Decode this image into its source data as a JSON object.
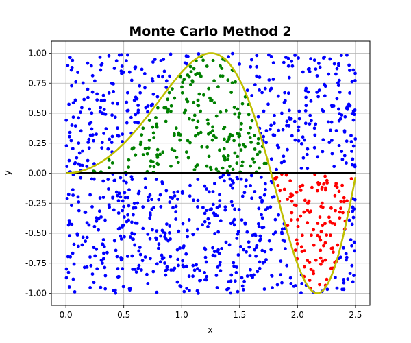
{
  "chart_data": {
    "type": "scatter",
    "title": "Monte Carlo Method 2",
    "xlabel": "x",
    "ylabel": "y",
    "xlim": [
      -0.125,
      2.625
    ],
    "ylim": [
      -1.1,
      1.1
    ],
    "xticks": [
      "0.0",
      "0.5",
      "1.0",
      "1.5",
      "2.0",
      "2.5"
    ],
    "yticks": [
      "-1.00",
      "-0.75",
      "-0.50",
      "-0.25",
      "0.00",
      "0.25",
      "0.50",
      "0.75",
      "1.00"
    ],
    "grid": true,
    "colors": {
      "outside": "#0000ff",
      "below_curve_positive": "#008000",
      "above_curve_negative": "#ff0000",
      "curve": "#bfbf00",
      "zero_line": "#000000"
    },
    "curve": {
      "formula": "sin(x^2)",
      "x_range": [
        0,
        2.5
      ]
    },
    "zero_line": {
      "y": 0,
      "x_range": [
        0,
        2.5
      ]
    },
    "random_points": {
      "count": 1200,
      "x_range": [
        0,
        2.5
      ],
      "y_range": [
        -1,
        1
      ]
    }
  }
}
